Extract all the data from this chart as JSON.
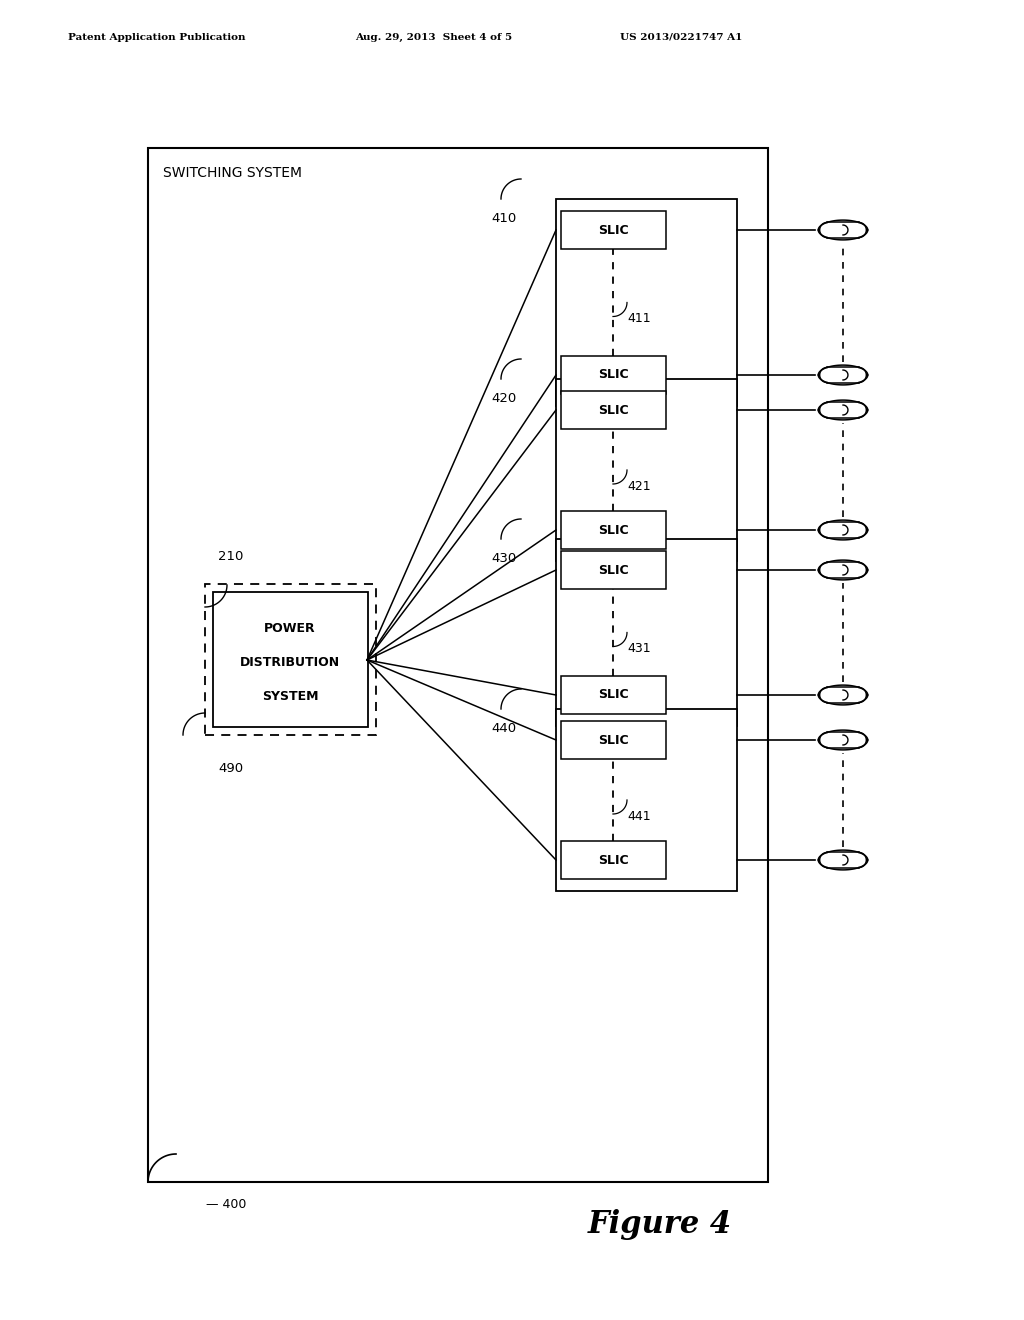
{
  "header_left": "Patent Application Publication",
  "header_mid": "Aug. 29, 2013  Sheet 4 of 5",
  "header_right": "US 2013/0221747 A1",
  "figure_label": "Figure 4",
  "outer_box_label": "SWITCHING SYSTEM",
  "outer_box_id": "400",
  "power_box_lines": [
    "POWER",
    "DISTRIBUTION",
    "SYSTEM"
  ],
  "power_box_id": "210",
  "power_dashed_id": "490",
  "group_ids": [
    "410",
    "420",
    "430",
    "440"
  ],
  "sub_ids": [
    "411",
    "421",
    "431",
    "441"
  ],
  "bg_color": "#ffffff"
}
